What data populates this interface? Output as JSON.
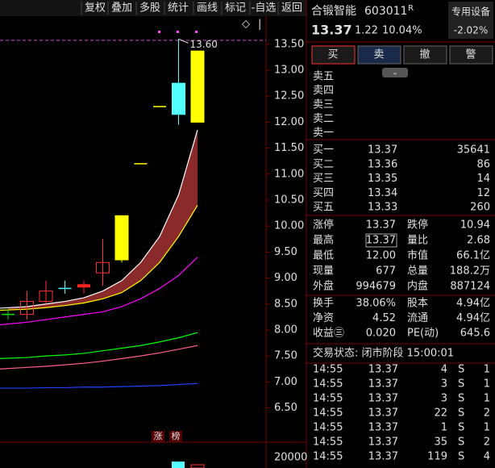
{
  "toolbar": [
    "复权",
    "叠加",
    "多股",
    "统计",
    "画线",
    "标记",
    "-自选",
    "返回"
  ],
  "kline": {
    "type": "candlestick",
    "ylim": [
      6.12,
      14.01
    ],
    "yticks": [
      {
        "value": 13.5,
        "label": "13.50"
      },
      {
        "value": 13,
        "label": "13.00"
      },
      {
        "value": 12.5,
        "label": "12.50"
      },
      {
        "value": 12,
        "label": "12.00"
      },
      {
        "value": 11.5,
        "label": "11.50"
      },
      {
        "value": 11,
        "label": "11.00"
      },
      {
        "value": 10.5,
        "label": "10.50"
      },
      {
        "value": 10,
        "label": "10.00"
      },
      {
        "value": 9.5,
        "label": "9.50"
      },
      {
        "value": 9,
        "label": "9.00"
      },
      {
        "value": 8.5,
        "label": "8.50"
      },
      {
        "value": 8,
        "label": "8.00"
      },
      {
        "value": 7.5,
        "label": "7.50"
      },
      {
        "value": 7,
        "label": "7.00"
      },
      {
        "value": 6.5,
        "label": "6.50"
      }
    ],
    "candles": [
      {
        "open": 8.3,
        "high": 8.4,
        "low": 8.2,
        "close": 8.3,
        "color": "#00e000"
      },
      {
        "open": 8.3,
        "high": 8.75,
        "low": 8.2,
        "close": 8.55,
        "color": "#ff3232"
      },
      {
        "open": 8.55,
        "high": 8.95,
        "low": 8.5,
        "close": 8.75,
        "color": "#ff3232"
      },
      {
        "open": 8.8,
        "high": 8.95,
        "low": 8.7,
        "close": 8.8,
        "color": "#54ffff"
      },
      {
        "open": 8.85,
        "high": 8.95,
        "low": 8.7,
        "close": 8.85,
        "color": "#ff2020"
      },
      {
        "open": 9.1,
        "high": 9.75,
        "low": 8.85,
        "close": 9.3,
        "color": "#ff3232"
      },
      {
        "open": 9.35,
        "high": 10.2,
        "low": 9.3,
        "close": 10.2,
        "color": "#ffff00"
      },
      {
        "open": 11.2,
        "high": 11.2,
        "low": 11.2,
        "close": 11.2,
        "color": "#ffff00"
      },
      {
        "open": 12.3,
        "high": 12.3,
        "low": 12.3,
        "close": 12.3,
        "color": "#ffff00"
      },
      {
        "open": 12.75,
        "high": 13.6,
        "low": 11.95,
        "close": 12.15,
        "color": "#54ffff"
      },
      {
        "open": 12.0,
        "high": 13.37,
        "low": 12.0,
        "close": 13.37,
        "color": "#ffff00"
      }
    ],
    "high_label": "13.60",
    "lines": [
      {
        "color": "#ffffff",
        "values": [
          8.42,
          8.45,
          8.5,
          8.55,
          8.62,
          8.75,
          8.95,
          9.3,
          9.8,
          10.6,
          11.85
        ]
      },
      {
        "color": "#ffff00",
        "values": [
          8.38,
          8.4,
          8.43,
          8.47,
          8.52,
          8.6,
          8.72,
          8.95,
          9.3,
          9.8,
          10.4
        ]
      },
      {
        "color": "#ff00ff",
        "values": [
          8.1,
          8.15,
          8.2,
          8.25,
          8.3,
          8.35,
          8.45,
          8.6,
          8.8,
          9.05,
          9.4
        ]
      },
      {
        "color": "#00ff00",
        "values": [
          7.45,
          7.47,
          7.5,
          7.52,
          7.55,
          7.6,
          7.65,
          7.7,
          7.77,
          7.85,
          7.95
        ]
      },
      {
        "color": "#ff6090",
        "values": [
          7.25,
          7.28,
          7.3,
          7.33,
          7.36,
          7.4,
          7.45,
          7.5,
          7.56,
          7.63,
          7.7
        ]
      },
      {
        "color": "#2040ff",
        "values": [
          6.88,
          6.88,
          6.89,
          6.89,
          6.9,
          6.9,
          6.91,
          6.92,
          6.93,
          6.95,
          6.97
        ]
      }
    ],
    "badges": [
      "涨",
      "榜"
    ],
    "volume_tick": "20000"
  },
  "panel": {
    "name": "合锻智能",
    "code": "603011",
    "flag": "R",
    "sector": "专用设备",
    "price": "13.37",
    "change": "1.22",
    "pct": "10.04%",
    "sector_pct": "-2.02%",
    "buttons": [
      "买",
      "卖",
      "撤",
      "警"
    ],
    "sell": [
      "卖五",
      "卖四",
      "卖三",
      "卖二",
      "卖一"
    ],
    "buy": [
      [
        "买一",
        "13.37",
        "35641"
      ],
      [
        "买二",
        "13.36",
        "86"
      ],
      [
        "买三",
        "13.35",
        "14"
      ],
      [
        "买四",
        "13.34",
        "12"
      ],
      [
        "买五",
        "13.33",
        "260"
      ]
    ],
    "stats": [
      [
        "涨停",
        "13.37",
        "跌停",
        "10.94"
      ],
      [
        "最高",
        "13.37",
        "量比",
        "2.68"
      ],
      [
        "最低",
        "12.00",
        "市值",
        "66.1亿"
      ],
      [
        "现量",
        "677",
        "总量",
        "188.2万"
      ],
      [
        "外盘",
        "994679",
        "内盘",
        "887124"
      ]
    ],
    "stats2": [
      [
        "换手",
        "38.06%",
        "股本",
        "4.94亿"
      ],
      [
        "净资",
        "4.52",
        "流通",
        "4.94亿"
      ],
      [
        "收益㊂",
        "0.020",
        "PE(动)",
        "645.6"
      ]
    ],
    "status": "交易状态: 闭市阶段 15:00:01",
    "ticks": [
      [
        "14:55",
        "13.37",
        "4",
        "S",
        "1"
      ],
      [
        "14:55",
        "13.37",
        "3",
        "S",
        "1"
      ],
      [
        "14:55",
        "13.37",
        "3",
        "S",
        "1"
      ],
      [
        "14:55",
        "13.37",
        "22",
        "S",
        "2"
      ],
      [
        "14:55",
        "13.37",
        "1",
        "S",
        "1"
      ],
      [
        "14:55",
        "13.37",
        "35",
        "S",
        "2"
      ],
      [
        "14:55",
        "13.37",
        "119",
        "S",
        "4"
      ]
    ]
  }
}
